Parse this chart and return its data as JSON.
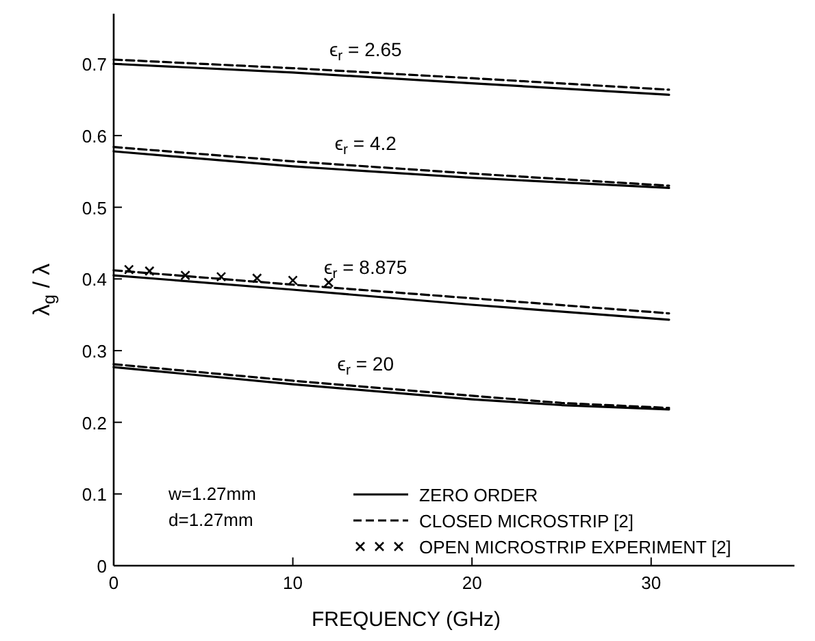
{
  "chart_data": {
    "type": "line",
    "xlabel": "FREQUENCY (GHz)",
    "ylabel": "λ$_{g}$ / λ",
    "xlim": [
      0,
      38
    ],
    "ylim": [
      0,
      0.77
    ],
    "xticks": [
      0,
      10,
      20,
      30
    ],
    "yticks": [
      0,
      0.1,
      0.2,
      0.3,
      0.4,
      0.5,
      0.6,
      0.7
    ],
    "legend": "bottom right",
    "grid": false,
    "series": [
      {
        "name": "ZERO ORDER",
        "color": "#000000",
        "line_style": "solid",
        "marker": "none",
        "x": [
          0,
          10,
          20,
          31
        ],
        "values": [
          0.7,
          0.688,
          0.673,
          0.657
        ]
      },
      {
        "name": "CLOSED MICROSTRIP [2]",
        "color": "#000000",
        "line_style": "dashed",
        "marker": "none",
        "x": [
          0,
          10,
          20,
          31
        ],
        "values": [
          0.706,
          0.694,
          0.68,
          0.664
        ]
      },
      {
        "color": "#000000",
        "line_style": "solid",
        "marker": "none",
        "x": [
          0,
          10,
          20,
          31
        ],
        "values": [
          0.578,
          0.557,
          0.541,
          0.527
        ]
      },
      {
        "color": "#000000",
        "line_style": "dashed",
        "marker": "none",
        "x": [
          0,
          10,
          20,
          31
        ],
        "values": [
          0.584,
          0.564,
          0.547,
          0.53
        ]
      },
      {
        "color": "#000000",
        "line_style": "solid",
        "marker": "none",
        "x": [
          0,
          10,
          20,
          31
        ],
        "values": [
          0.405,
          0.385,
          0.364,
          0.343
        ]
      },
      {
        "color": "#000000",
        "line_style": "dashed",
        "marker": "none",
        "x": [
          0,
          10,
          20,
          31
        ],
        "values": [
          0.412,
          0.392,
          0.373,
          0.352
        ]
      },
      {
        "color": "#000000",
        "line_style": "solid",
        "marker": "none",
        "x": [
          0,
          10,
          20,
          25,
          31
        ],
        "values": [
          0.277,
          0.253,
          0.232,
          0.224,
          0.218
        ]
      },
      {
        "color": "#000000",
        "line_style": "dashed",
        "marker": "none",
        "x": [
          0,
          10,
          20,
          25,
          31
        ],
        "values": [
          0.281,
          0.258,
          0.237,
          0.227,
          0.22
        ]
      },
      {
        "name": "OPEN MICROSTRIP EXPERIMENT [2]",
        "type": "scatter",
        "color": "#000000",
        "marker": "cross",
        "x": [
          0.85,
          2,
          4,
          6,
          8,
          10,
          12
        ],
        "values": [
          0.413,
          0.411,
          0.405,
          0.403,
          0.401,
          0.398,
          0.395
        ]
      }
    ],
    "annotations": [
      "ϵ$_{r}$ = 2.65",
      "ϵ$_{r}$ = 4.2",
      "ϵ$_{r}$ = 8.875",
      "ϵ$_{r}$ = 20",
      "w=1.27mm",
      "d=1.27mm"
    ]
  }
}
